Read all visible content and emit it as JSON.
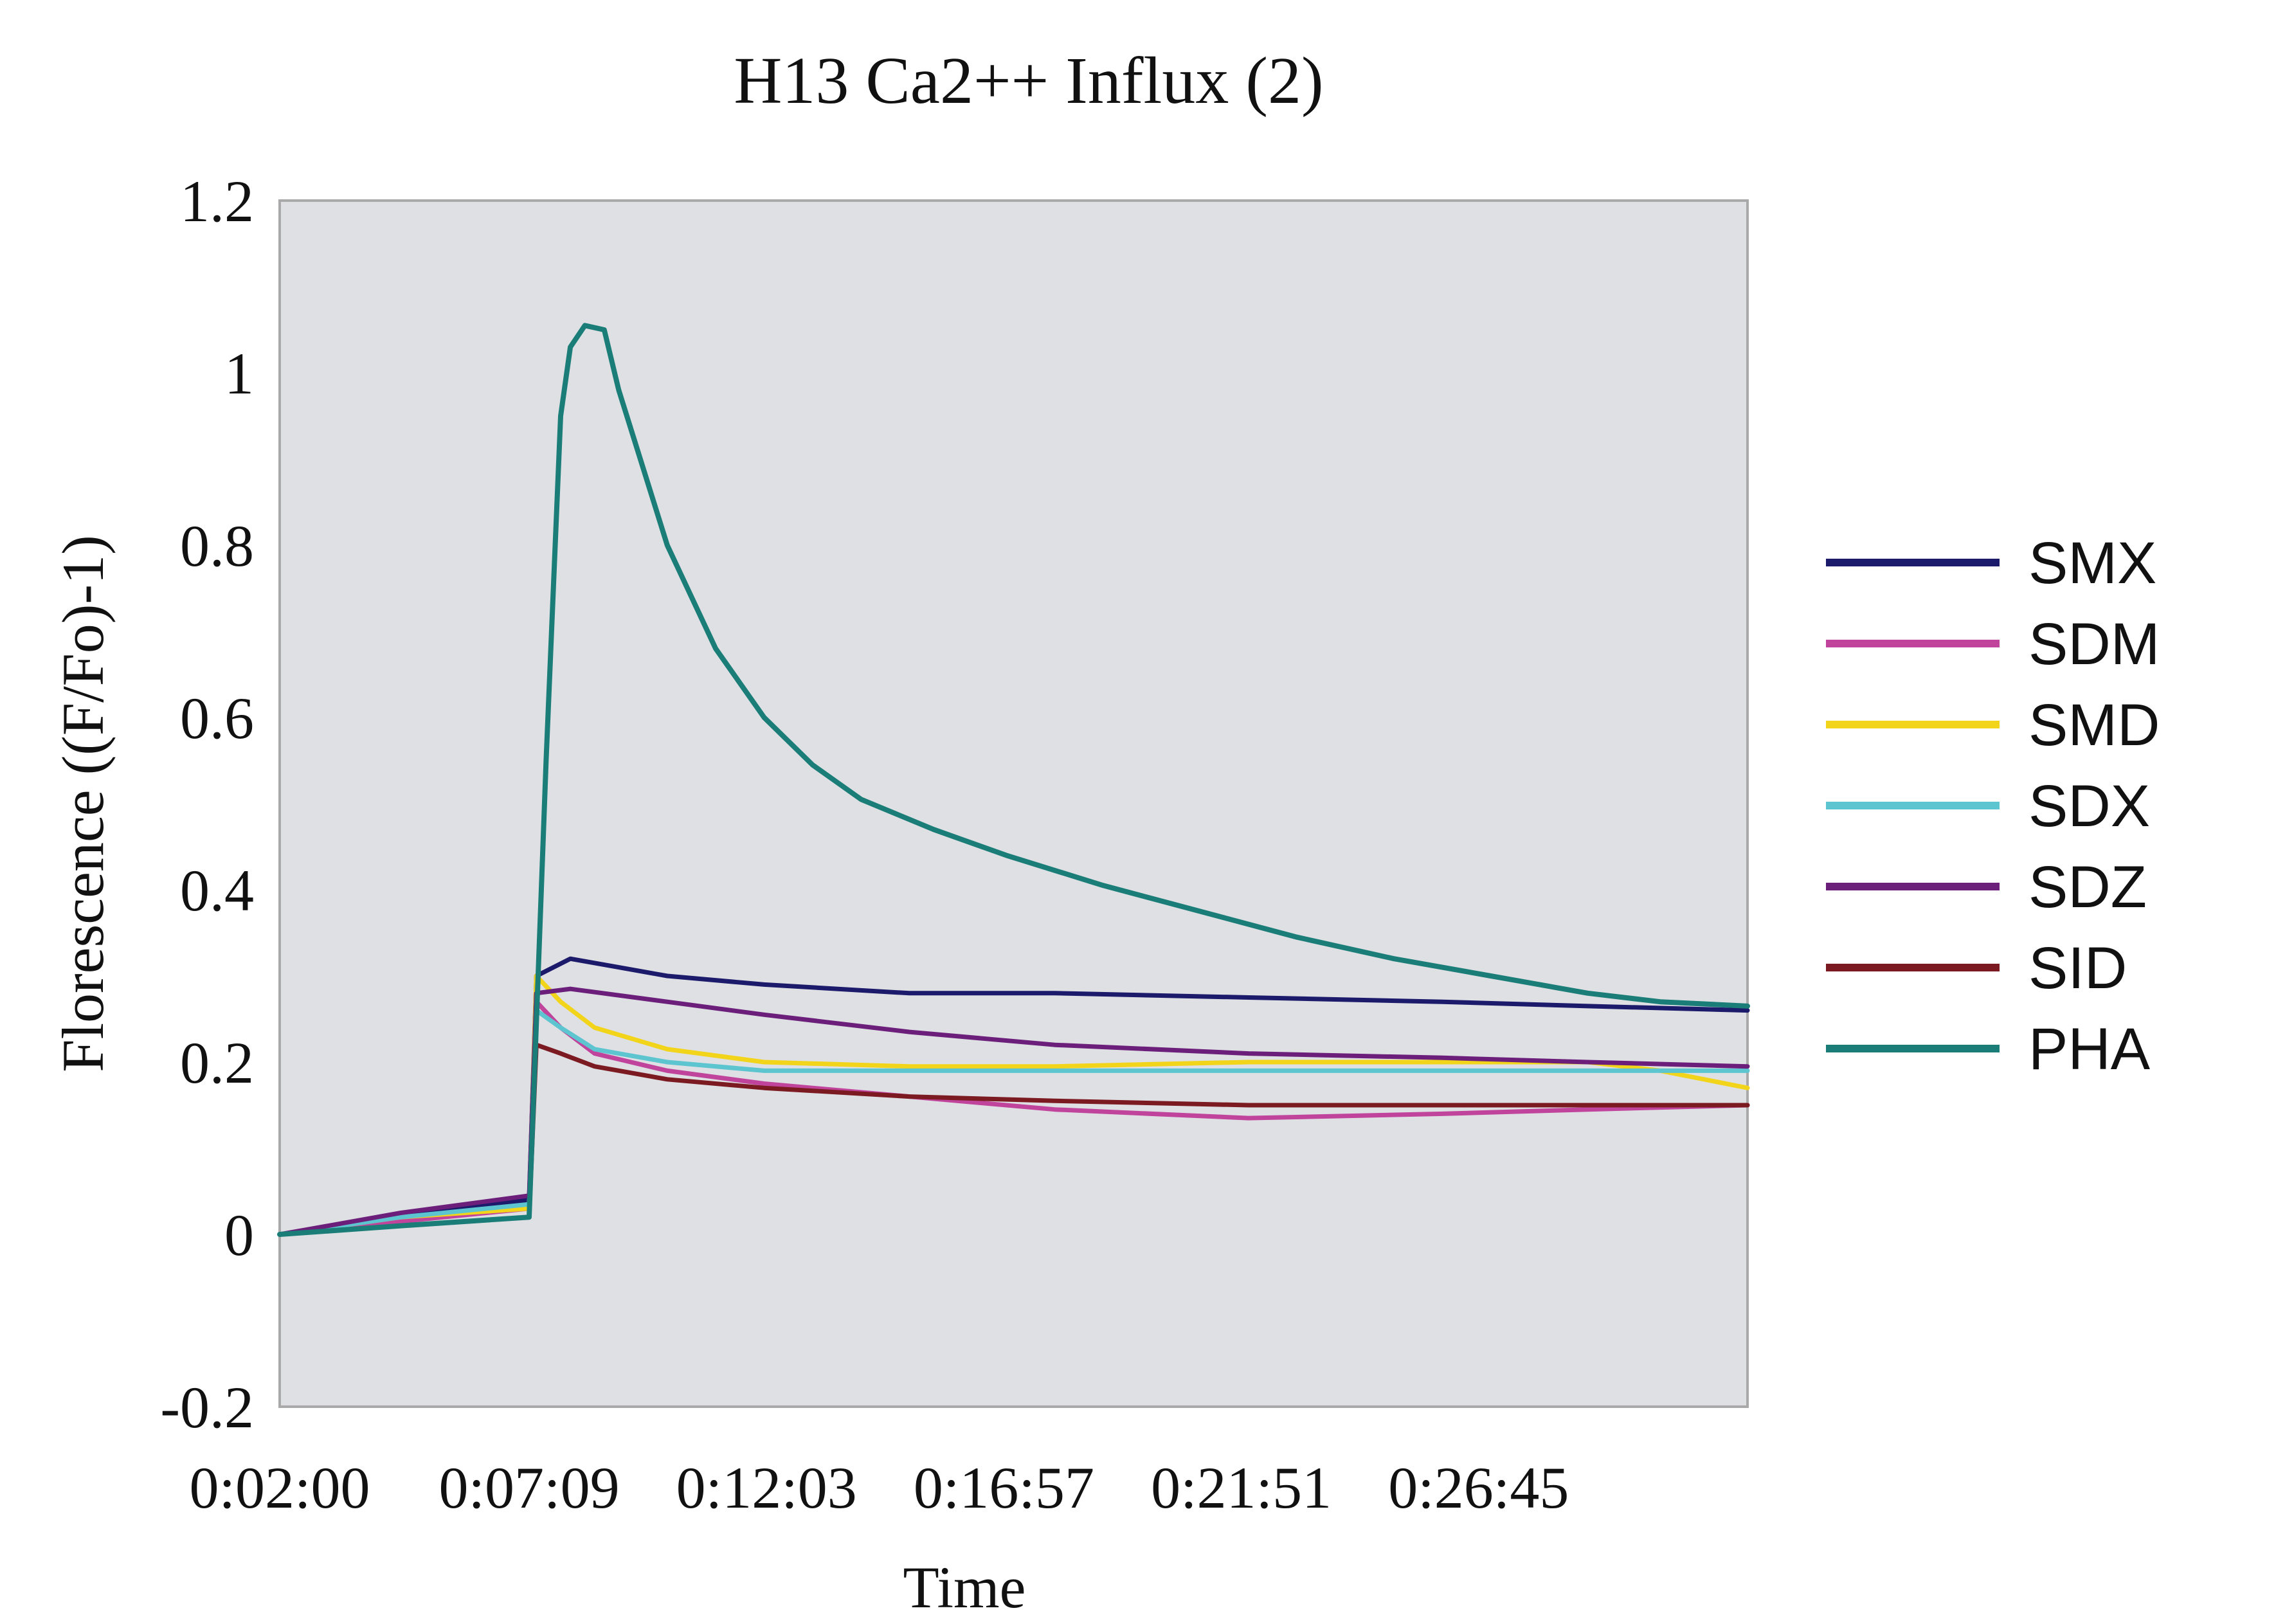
{
  "chart_data": {
    "type": "line",
    "title": "H13 Ca2++ Influx (2)",
    "xlabel": "Time",
    "ylabel": "Florescence ((F/Fo)-1)",
    "ylim": [
      -0.2,
      1.2
    ],
    "yticks": [
      "1.2",
      "1",
      "0.8",
      "0.6",
      "0.4",
      "0.2",
      "0",
      "-0.2"
    ],
    "xticks": [
      "0:02:00",
      "0:07:09",
      "0:12:03",
      "0:16:57",
      "0:21:51",
      "0:26:45"
    ],
    "xlim": [
      2.0,
      32.3
    ],
    "xtick_minutes": [
      2.0,
      7.15,
      12.05,
      16.95,
      21.85,
      26.75
    ],
    "grid": false,
    "legend_position": "right",
    "plot_background": "#dfe0e4",
    "series": [
      {
        "name": "SMX",
        "color": "#1c1a6b",
        "x": [
          2.0,
          4.5,
          7.15,
          7.3,
          8.0,
          9.0,
          10.0,
          12.0,
          15.0,
          18.0,
          22.0,
          26.0,
          29.0,
          32.3
        ],
        "y": [
          0.0,
          0.02,
          0.04,
          0.3,
          0.32,
          0.31,
          0.3,
          0.29,
          0.28,
          0.28,
          0.275,
          0.27,
          0.265,
          0.26
        ]
      },
      {
        "name": "SDM",
        "color": "#c0449b",
        "x": [
          2.0,
          4.5,
          7.15,
          7.3,
          7.8,
          8.5,
          10.0,
          12.0,
          15.0,
          18.0,
          22.0,
          26.0,
          29.0,
          32.3
        ],
        "y": [
          0.0,
          0.015,
          0.03,
          0.27,
          0.24,
          0.21,
          0.19,
          0.175,
          0.16,
          0.145,
          0.135,
          0.14,
          0.145,
          0.15
        ]
      },
      {
        "name": "SMD",
        "color": "#f2d41a",
        "x": [
          2.0,
          4.5,
          7.15,
          7.3,
          7.8,
          8.5,
          10.0,
          12.0,
          15.0,
          18.0,
          22.0,
          26.0,
          29.0,
          30.5,
          32.3
        ],
        "y": [
          0.0,
          0.02,
          0.03,
          0.3,
          0.27,
          0.24,
          0.215,
          0.2,
          0.195,
          0.195,
          0.2,
          0.2,
          0.2,
          0.19,
          0.17
        ]
      },
      {
        "name": "SDX",
        "color": "#5cc5d0",
        "x": [
          2.0,
          4.5,
          7.15,
          7.3,
          7.8,
          8.5,
          10.0,
          12.0,
          15.0,
          18.0,
          22.0,
          26.0,
          29.0,
          32.3
        ],
        "y": [
          0.0,
          0.02,
          0.035,
          0.26,
          0.24,
          0.215,
          0.2,
          0.19,
          0.19,
          0.19,
          0.19,
          0.19,
          0.19,
          0.19
        ]
      },
      {
        "name": "SDZ",
        "color": "#6b1f7a",
        "x": [
          2.0,
          4.5,
          7.15,
          7.3,
          8.0,
          10.0,
          12.0,
          15.0,
          18.0,
          22.0,
          26.0,
          29.0,
          32.3
        ],
        "y": [
          0.0,
          0.025,
          0.045,
          0.28,
          0.285,
          0.27,
          0.255,
          0.235,
          0.22,
          0.21,
          0.205,
          0.2,
          0.195
        ]
      },
      {
        "name": "SID",
        "color": "#7c1a22",
        "x": [
          2.0,
          4.5,
          7.15,
          7.3,
          7.8,
          8.5,
          10.0,
          12.0,
          15.0,
          18.0,
          22.0,
          26.0,
          29.0,
          32.3
        ],
        "y": [
          0.0,
          0.01,
          0.02,
          0.22,
          0.21,
          0.195,
          0.18,
          0.17,
          0.16,
          0.155,
          0.15,
          0.15,
          0.15,
          0.15
        ]
      },
      {
        "name": "PHA",
        "color": "#1a7d77",
        "x": [
          2.0,
          4.5,
          7.15,
          7.5,
          7.8,
          8.0,
          8.3,
          8.7,
          9.0,
          10.0,
          11.0,
          12.0,
          13.0,
          14.0,
          15.5,
          17.0,
          19.0,
          21.0,
          23.0,
          25.0,
          27.0,
          29.0,
          30.5,
          32.3
        ],
        "y": [
          0.0,
          0.01,
          0.02,
          0.55,
          0.95,
          1.03,
          1.055,
          1.05,
          0.98,
          0.8,
          0.68,
          0.6,
          0.545,
          0.505,
          0.47,
          0.44,
          0.405,
          0.375,
          0.345,
          0.32,
          0.3,
          0.28,
          0.27,
          0.265
        ]
      }
    ]
  }
}
